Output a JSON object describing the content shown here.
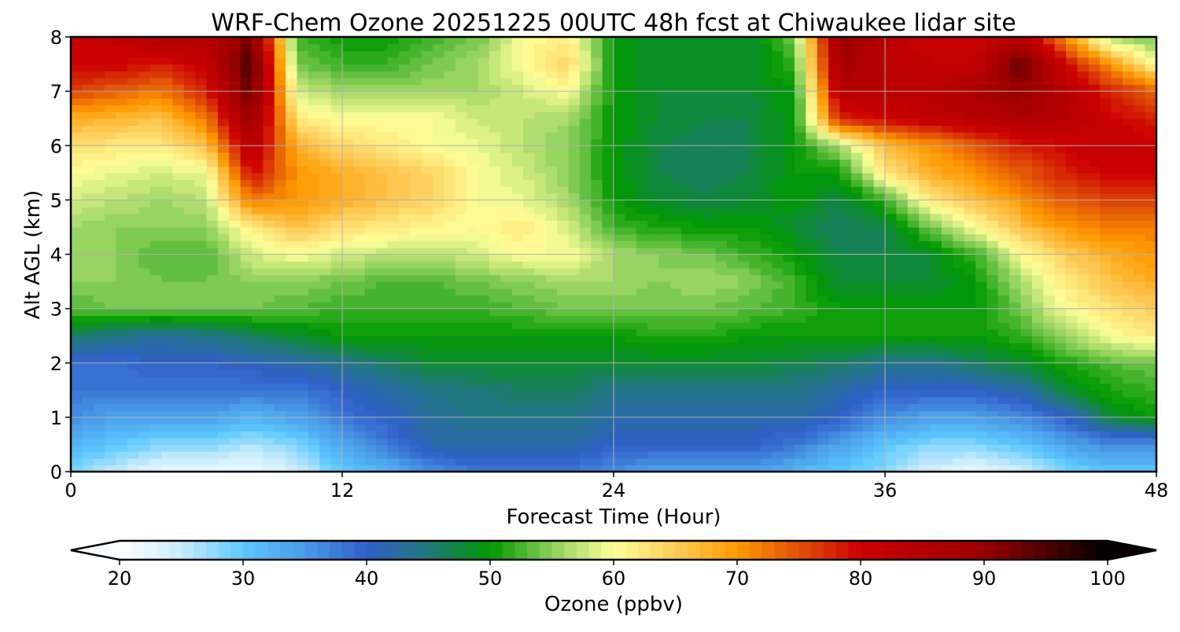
{
  "chart_data": {
    "type": "heatmap",
    "title": "WRF-Chem Ozone  20251225 00UTC 48h fcst at Chiwaukee lidar site",
    "xlabel": "Forecast Time (Hour)",
    "ylabel": "Alt AGL (km)",
    "xlim": [
      0,
      48
    ],
    "ylim": [
      0,
      8
    ],
    "xticks": [
      "0",
      "12",
      "24",
      "36",
      "48"
    ],
    "xtick_values": [
      0,
      12,
      24,
      36,
      48
    ],
    "yticks": [
      "0",
      "1",
      "2",
      "3",
      "4",
      "5",
      "6",
      "7",
      "8"
    ],
    "ytick_values": [
      0,
      1,
      2,
      3,
      4,
      5,
      6,
      7,
      8
    ],
    "grid": true,
    "x": [
      0,
      2,
      4,
      6,
      8,
      10,
      12,
      14,
      16,
      18,
      20,
      22,
      24,
      26,
      28,
      30,
      32,
      34,
      36,
      38,
      40,
      42,
      44,
      46,
      48
    ],
    "y": [
      0,
      0.5,
      1,
      1.5,
      2,
      2.5,
      3,
      3.5,
      4,
      4.5,
      5,
      5.5,
      6,
      6.5,
      7,
      7.5,
      8
    ],
    "z": [
      [
        28,
        25,
        22,
        22,
        22,
        24,
        30,
        32,
        36,
        38,
        38,
        38,
        36,
        34,
        34,
        34,
        32,
        30,
        28,
        24,
        22,
        24,
        28,
        30,
        30
      ],
      [
        32,
        30,
        28,
        28,
        26,
        28,
        34,
        38,
        42,
        42,
        42,
        42,
        40,
        40,
        40,
        40,
        38,
        34,
        30,
        28,
        28,
        30,
        34,
        36,
        36
      ],
      [
        36,
        34,
        34,
        34,
        32,
        34,
        38,
        40,
        43,
        44,
        44,
        44,
        42,
        42,
        42,
        42,
        42,
        40,
        36,
        34,
        34,
        36,
        40,
        48,
        50
      ],
      [
        38,
        38,
        38,
        38,
        38,
        38,
        40,
        42,
        44,
        45,
        46,
        46,
        44,
        44,
        44,
        44,
        44,
        42,
        40,
        40,
        40,
        42,
        48,
        51,
        52
      ],
      [
        39,
        39,
        40,
        40,
        41,
        42,
        44,
        46,
        48,
        48,
        48,
        48,
        48,
        48,
        48,
        48,
        47,
        46,
        44,
        44,
        46,
        48,
        51,
        53,
        54
      ],
      [
        46,
        44,
        43,
        44,
        46,
        48,
        50,
        50,
        50,
        50,
        50,
        50,
        50,
        51,
        51,
        50,
        50,
        50,
        50,
        50,
        50,
        52,
        56,
        60,
        62
      ],
      [
        53,
        54,
        54,
        54,
        54,
        53,
        52,
        52,
        52,
        52,
        53,
        54,
        54,
        54,
        54,
        53,
        52,
        50,
        50,
        50,
        50,
        54,
        60,
        63,
        65
      ],
      [
        55,
        55,
        54,
        54,
        55,
        55,
        54,
        53,
        53,
        54,
        55,
        56,
        56,
        55,
        56,
        55,
        52,
        48,
        48,
        48,
        50,
        56,
        62,
        66,
        68
      ],
      [
        56,
        55,
        53,
        53,
        58,
        60,
        58,
        57,
        57,
        58,
        60,
        60,
        56,
        55,
        54,
        52,
        50,
        47,
        47,
        48,
        52,
        60,
        65,
        68,
        70
      ],
      [
        56,
        55,
        55,
        55,
        62,
        66,
        63,
        62,
        61,
        60,
        62,
        58,
        52,
        51,
        50,
        50,
        48,
        46,
        47,
        54,
        60,
        66,
        70,
        72,
        72
      ],
      [
        58,
        57,
        56,
        57,
        72,
        70,
        68,
        66,
        64,
        60,
        59,
        56,
        50,
        48,
        47,
        48,
        50,
        47,
        52,
        62,
        66,
        70,
        74,
        76,
        76
      ],
      [
        60,
        59,
        58,
        59,
        80,
        70,
        68,
        66,
        64,
        60,
        58,
        55,
        50,
        47,
        46,
        47,
        50,
        50,
        62,
        68,
        70,
        74,
        78,
        80,
        80
      ],
      [
        63,
        62,
        62,
        66,
        84,
        68,
        64,
        62,
        60,
        59,
        57,
        55,
        50,
        47,
        46,
        47,
        50,
        56,
        66,
        70,
        74,
        78,
        80,
        82,
        80
      ],
      [
        68,
        67,
        66,
        72,
        90,
        62,
        60,
        60,
        60,
        58,
        57,
        56,
        50,
        48,
        47,
        47,
        50,
        78,
        80,
        82,
        84,
        86,
        84,
        80,
        78
      ],
      [
        76,
        74,
        72,
        78,
        94,
        58,
        56,
        56,
        56,
        56,
        58,
        60,
        50,
        48,
        48,
        48,
        50,
        84,
        84,
        84,
        86,
        90,
        84,
        78,
        74
      ],
      [
        80,
        80,
        78,
        82,
        96,
        54,
        52,
        52,
        54,
        56,
        60,
        64,
        50,
        48,
        48,
        48,
        52,
        88,
        84,
        82,
        82,
        94,
        80,
        70,
        60
      ],
      [
        80,
        82,
        86,
        84,
        92,
        52,
        50,
        50,
        52,
        54,
        60,
        62,
        50,
        48,
        48,
        48,
        54,
        90,
        84,
        80,
        80,
        84,
        70,
        56,
        54
      ]
    ],
    "colorbar": {
      "label": "Ozone  (ppbv)",
      "range": [
        20,
        100
      ],
      "extend": "both",
      "ticks": [
        "20",
        "30",
        "40",
        "50",
        "60",
        "70",
        "80",
        "90",
        "100"
      ],
      "tick_values": [
        20,
        30,
        40,
        50,
        60,
        70,
        80,
        90,
        100
      ],
      "stops": [
        [
          20,
          "#ffffff"
        ],
        [
          25,
          "#c8ecfc"
        ],
        [
          30,
          "#5cc8ff"
        ],
        [
          35,
          "#4a9ae6"
        ],
        [
          40,
          "#3060c8"
        ],
        [
          45,
          "#20787a"
        ],
        [
          50,
          "#009900"
        ],
        [
          55,
          "#8ccf5c"
        ],
        [
          60,
          "#ffff99"
        ],
        [
          65,
          "#fdcc5a"
        ],
        [
          70,
          "#ff9900"
        ],
        [
          75,
          "#e05008"
        ],
        [
          80,
          "#cc0000"
        ],
        [
          90,
          "#990000"
        ],
        [
          100,
          "#000000"
        ]
      ]
    }
  }
}
